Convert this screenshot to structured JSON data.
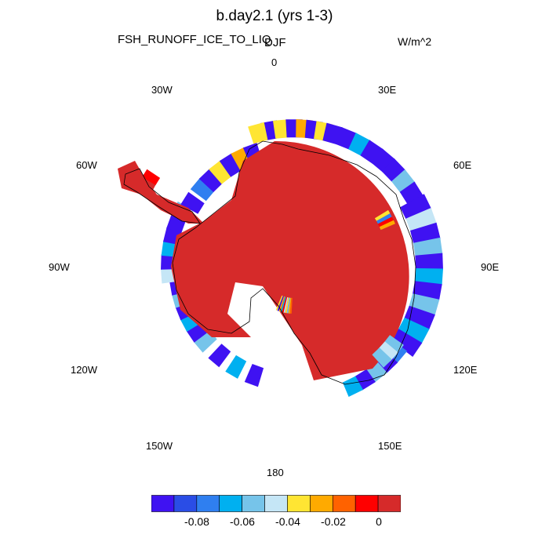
{
  "title": "b.day2.1 (yrs 1-3)",
  "variable": "FSH_RUNOFF_ICE_TO_LIQ",
  "season": "DJF",
  "units": "W/m^2",
  "longitude_labels": [
    "0",
    "30E",
    "60E",
    "90E",
    "120E",
    "150E",
    "180",
    "150W",
    "120W",
    "90W",
    "60W",
    "30W"
  ],
  "colorbar": {
    "colors": [
      "#3f12f2",
      "#2a4de6",
      "#2f7ff0",
      "#00b0f0",
      "#76c4ea",
      "#c5e6f6",
      "#ffe533",
      "#ffaa00",
      "#ff6200",
      "#ff0000",
      "#d62a2a"
    ],
    "labels": [
      "-0.08",
      "-0.06",
      "-0.04",
      "-0.02",
      "0"
    ]
  },
  "map_colors": {
    "interior": "#d62a2a",
    "coastline": "#000000"
  }
}
